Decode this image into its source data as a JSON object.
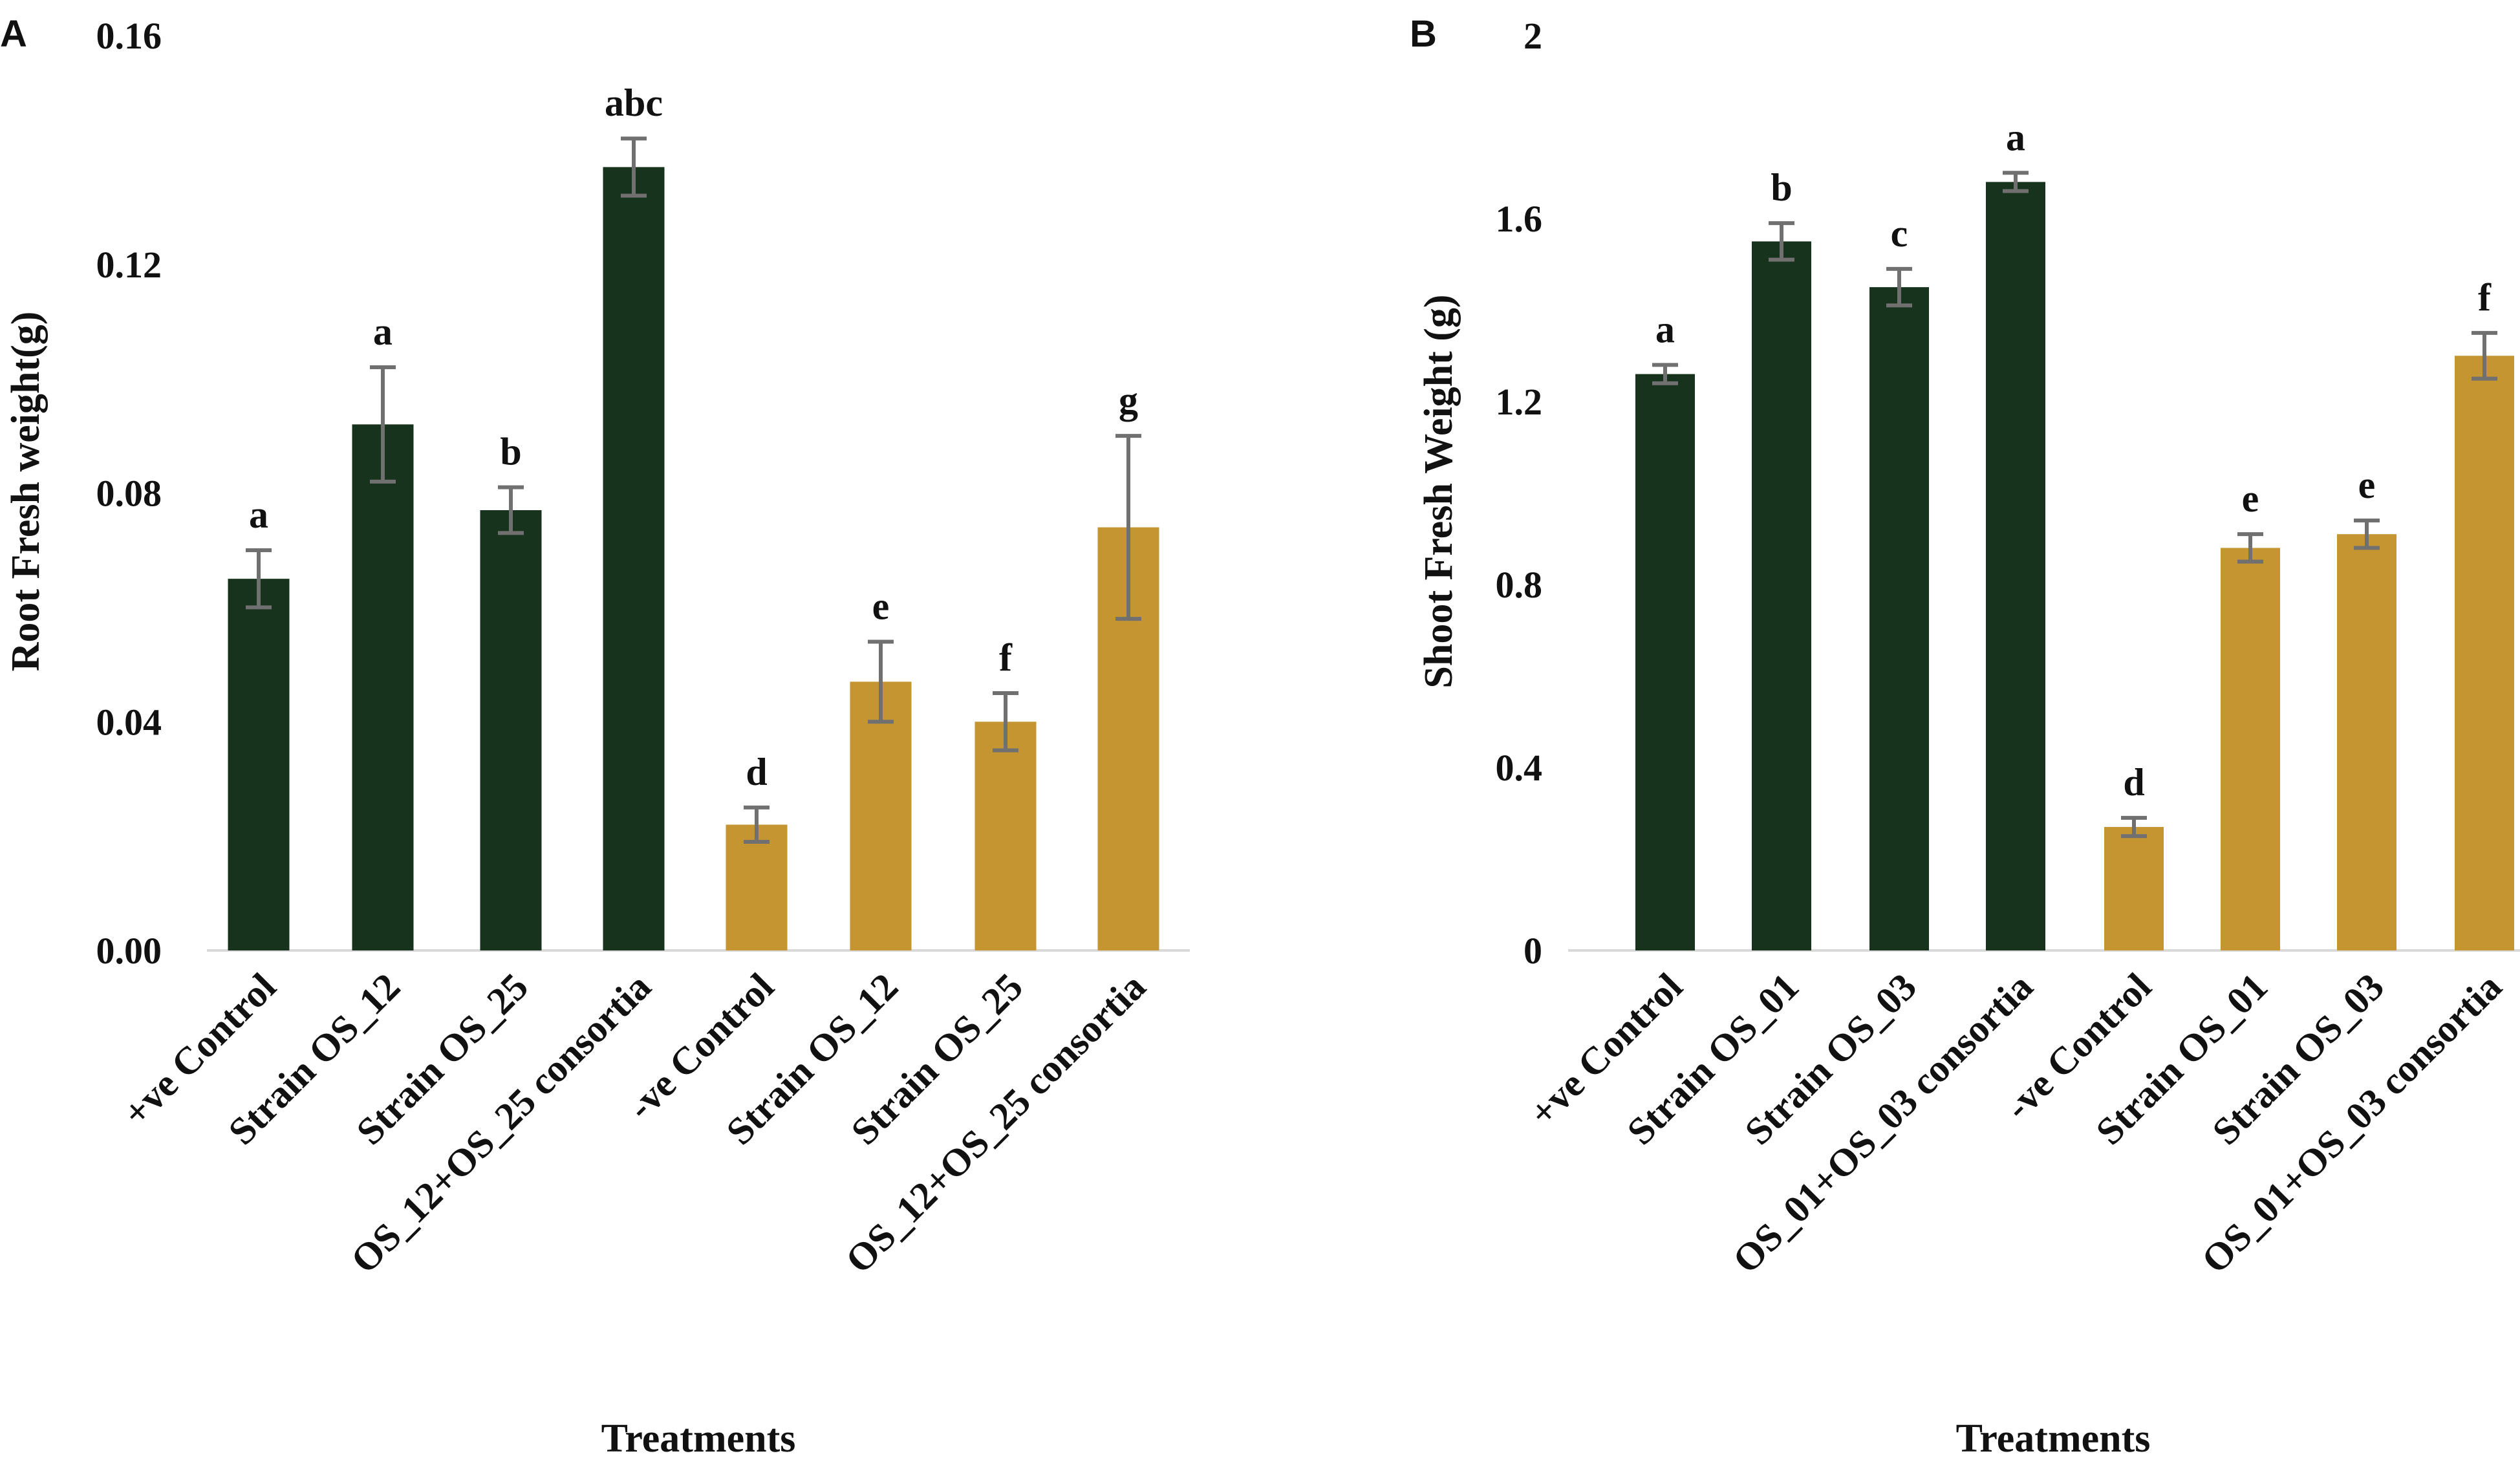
{
  "chart_data": [
    {
      "panel": "A",
      "type": "bar",
      "xlabel": "Treatments",
      "ylabel": "Root Fresh weight(g)",
      "ylim": [
        0,
        0.16
      ],
      "yticks": [
        "0.00",
        "0.04",
        "0.08",
        "0.12",
        "0.16"
      ],
      "categories": [
        "+ve Control",
        "Strain OS_12",
        "Strain OS_25",
        "OS_12+OS_25 consortia",
        "-ve Control",
        "Strain OS_12",
        "Strain OS_25",
        "OS_12+OS_25 consortia"
      ],
      "values": [
        0.065,
        0.092,
        0.077,
        0.137,
        0.022,
        0.047,
        0.04,
        0.074
      ],
      "errors": [
        0.005,
        0.01,
        0.004,
        0.005,
        0.003,
        0.007,
        0.005,
        0.016
      ],
      "labels": [
        "a",
        "a",
        "b",
        "abc",
        "d",
        "e",
        "f",
        "g"
      ],
      "groups": [
        "dark",
        "dark",
        "dark",
        "dark",
        "gold",
        "gold",
        "gold",
        "gold"
      ]
    },
    {
      "panel": "B",
      "type": "bar",
      "xlabel": "Treatments",
      "ylabel": "Shoot Fresh Weight (g)",
      "ylim": [
        0,
        2
      ],
      "yticks": [
        "0",
        "0.4",
        "0.8",
        "1.2",
        "1.6",
        "2"
      ],
      "categories": [
        "+ve Control",
        "Strain OS_01",
        "Strain OS_03",
        "OS_01+OS_03 consortia",
        "-ve Control",
        "Strain OS_01",
        "Strain OS_03",
        "OS_01+OS_03 consortia"
      ],
      "values": [
        1.26,
        1.55,
        1.45,
        1.68,
        0.27,
        0.88,
        0.91,
        1.3
      ],
      "errors": [
        0.02,
        0.04,
        0.04,
        0.02,
        0.02,
        0.03,
        0.03,
        0.05
      ],
      "labels": [
        "a",
        "b",
        "c",
        "a",
        "d",
        "e",
        "e",
        "f"
      ],
      "groups": [
        "dark",
        "dark",
        "dark",
        "dark",
        "gold",
        "gold",
        "gold",
        "gold"
      ]
    }
  ],
  "colors": {
    "dark": "#18331D",
    "gold": "#C59532",
    "error": "#707070",
    "axis": "#D9D9D9"
  }
}
